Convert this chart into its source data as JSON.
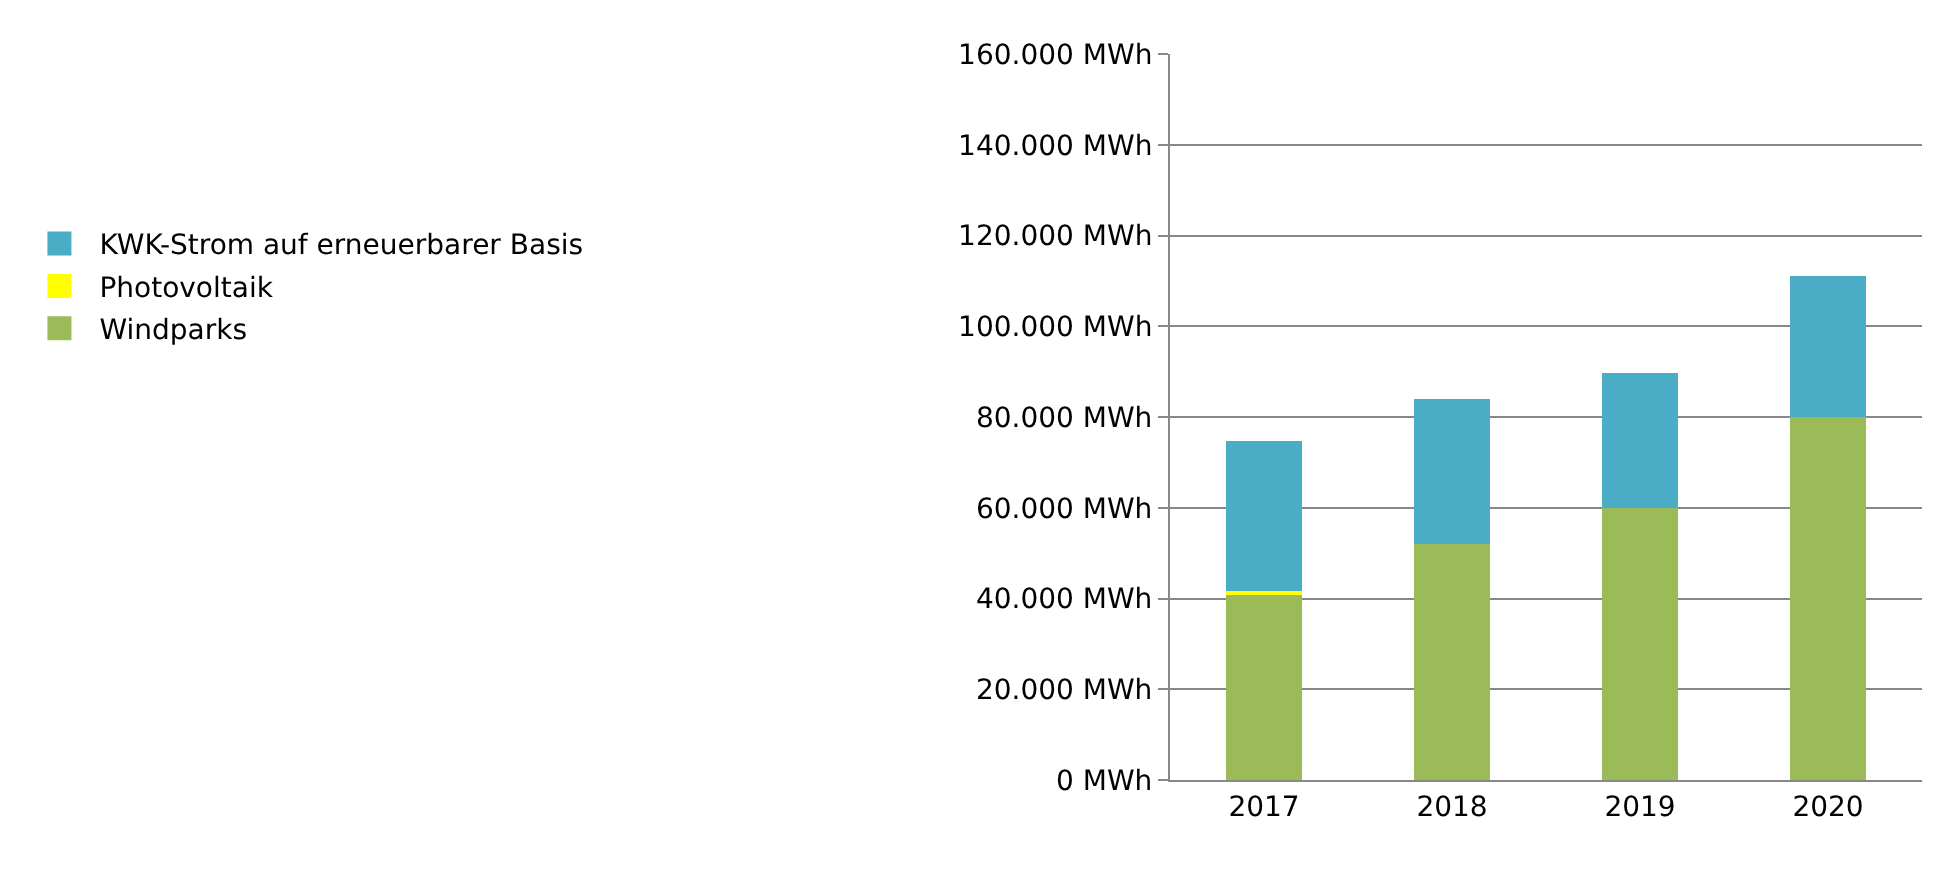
{
  "chart_data": {
    "type": "bar",
    "stacked": true,
    "categories": [
      "2017",
      "2018",
      "2019",
      "2020"
    ],
    "series": [
      {
        "name": "Windparks",
        "color": "#9bbb59",
        "values": [
          40800,
          52000,
          60000,
          80000
        ]
      },
      {
        "name": "Photovoltaik",
        "color": "#ffff00",
        "values": [
          900,
          0,
          0,
          0
        ]
      },
      {
        "name": "KWK-Strom auf erneuerbarer Basis",
        "color": "#4bacc6",
        "values": [
          33000,
          32000,
          29600,
          31000
        ]
      }
    ],
    "ylim": [
      0,
      160000
    ],
    "yticks": [
      {
        "value": 0,
        "label": "0 MWh"
      },
      {
        "value": 20000,
        "label": "20.000 MWh"
      },
      {
        "value": 40000,
        "label": "40.000 MWh"
      },
      {
        "value": 60000,
        "label": "60.000 MWh"
      },
      {
        "value": 80000,
        "label": "80.000 MWh"
      },
      {
        "value": 100000,
        "label": "100.000 MWh"
      },
      {
        "value": 120000,
        "label": "120.000 MWh"
      },
      {
        "value": 140000,
        "label": "140.000 MWh"
      },
      {
        "value": 160000,
        "label": "160.000 MWh"
      }
    ],
    "grid": "y",
    "legend": "left"
  }
}
